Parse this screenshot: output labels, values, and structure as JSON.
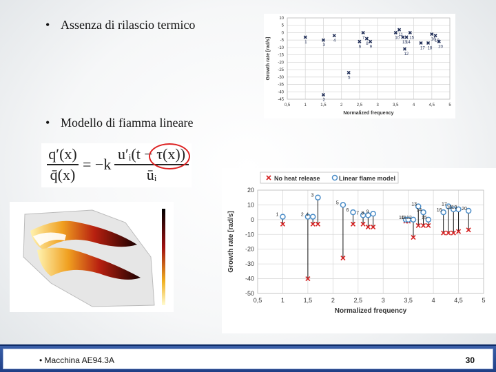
{
  "bullets": [
    {
      "symbol": "•",
      "text": "Assenza di rilascio termico"
    },
    {
      "symbol": "•",
      "text": "Modello di fiamma lineare"
    }
  ],
  "formula": {
    "lhs_num": "q′(x)",
    "lhs_den": "q̄(x)",
    "equals": "= −k",
    "rhs_num": "u′ᵢ(t − τ(x))",
    "rhs_den": "ūᵢ"
  },
  "footer": {
    "bullet": "•",
    "text": "Macchina AE94.3A",
    "page": "30"
  },
  "colors": {
    "no_heat": "#d62020",
    "linear_flame": "#4a8cc7",
    "footer_blue": "#2a4c96"
  },
  "chart_data": [
    {
      "type": "scatter",
      "xlabel": "Normalized  frequency",
      "ylabel": "Growth rate [rad/s]",
      "xlim": [
        0.5,
        5
      ],
      "ylim": [
        -45,
        10
      ],
      "xticks": [
        "0,5",
        "1",
        "1,5",
        "2",
        "2,5",
        "3",
        "3,5",
        "4",
        "4,5",
        "5"
      ],
      "yticks": [
        "10",
        "5",
        "0",
        "-5",
        "-10",
        "-15",
        "-20",
        "-25",
        "-30",
        "-35",
        "-40",
        "-45"
      ],
      "grid": true,
      "points": [
        {
          "label": "1",
          "x": 1.0,
          "y": -3
        },
        {
          "label": "2",
          "x": 1.5,
          "y": -42
        },
        {
          "label": "3",
          "x": 1.5,
          "y": -5
        },
        {
          "label": "4",
          "x": 1.8,
          "y": -2
        },
        {
          "label": "5",
          "x": 2.2,
          "y": -27
        },
        {
          "label": "6",
          "x": 2.5,
          "y": -6
        },
        {
          "label": "7",
          "x": 2.6,
          "y": 0
        },
        {
          "label": "8",
          "x": 2.7,
          "y": -4
        },
        {
          "label": "9",
          "x": 2.8,
          "y": -6
        },
        {
          "label": "10",
          "x": 3.5,
          "y": 0
        },
        {
          "label": "11",
          "x": 3.6,
          "y": 2
        },
        {
          "label": "12",
          "x": 3.75,
          "y": -11
        },
        {
          "label": "13",
          "x": 3.7,
          "y": -3
        },
        {
          "label": "14",
          "x": 3.8,
          "y": -3
        },
        {
          "label": "15",
          "x": 3.9,
          "y": 0
        },
        {
          "label": "16",
          "x": 4.5,
          "y": -1
        },
        {
          "label": "17",
          "x": 4.2,
          "y": -7
        },
        {
          "label": "18",
          "x": 4.4,
          "y": -7
        },
        {
          "label": "19",
          "x": 4.6,
          "y": -2
        },
        {
          "label": "20",
          "x": 4.7,
          "y": -6
        }
      ]
    },
    {
      "type": "scatter",
      "xlabel": "Normalized  frequency",
      "ylabel": "Growth rate [rad/s]",
      "xlim": [
        0.5,
        5
      ],
      "ylim": [
        -50,
        20
      ],
      "xticks": [
        "0,5",
        "1",
        "1,5",
        "2",
        "2,5",
        "3",
        "3,5",
        "4",
        "4,5",
        "5"
      ],
      "yticks": [
        "20",
        "10",
        "0",
        "-10",
        "-20",
        "-30",
        "-40",
        "-50"
      ],
      "grid": true,
      "legend_position": "top-left",
      "series": [
        {
          "name": "No heat release",
          "marker": "x",
          "color": "#d62020"
        },
        {
          "name": "Linear flame model",
          "marker": "o",
          "color": "#4a8cc7"
        }
      ],
      "points": [
        {
          "label": "1",
          "x": 1.0,
          "no_heat": -3,
          "linear": 2
        },
        {
          "label": "2",
          "x": 1.5,
          "no_heat": -40,
          "linear": 2
        },
        {
          "label": "3",
          "x": 1.7,
          "no_heat": -3,
          "linear": 15
        },
        {
          "label": "4",
          "x": 1.6,
          "no_heat": -3,
          "linear": 2
        },
        {
          "label": "5",
          "x": 2.2,
          "no_heat": -26,
          "linear": 10
        },
        {
          "label": "6",
          "x": 2.4,
          "no_heat": -3,
          "linear": 5
        },
        {
          "label": "7",
          "x": 2.6,
          "no_heat": -3,
          "linear": 3
        },
        {
          "label": "8",
          "x": 2.7,
          "no_heat": -5,
          "linear": 3
        },
        {
          "label": "9",
          "x": 2.8,
          "no_heat": -5,
          "linear": 4
        },
        {
          "label": "10",
          "x": 3.45,
          "no_heat": -1,
          "linear": 0
        },
        {
          "label": "11",
          "x": 3.5,
          "no_heat": -1,
          "linear": 0
        },
        {
          "label": "12",
          "x": 3.6,
          "no_heat": -12,
          "linear": 0
        },
        {
          "label": "13",
          "x": 3.7,
          "no_heat": -4,
          "linear": 9
        },
        {
          "label": "14",
          "x": 3.8,
          "no_heat": -4,
          "linear": 5
        },
        {
          "label": "15",
          "x": 3.9,
          "no_heat": -4,
          "linear": 0
        },
        {
          "label": "16",
          "x": 4.2,
          "no_heat": -9,
          "linear": 5
        },
        {
          "label": "17",
          "x": 4.3,
          "no_heat": -9,
          "linear": 9
        },
        {
          "label": "18",
          "x": 4.4,
          "no_heat": -9,
          "linear": 7
        },
        {
          "label": "19",
          "x": 4.5,
          "no_heat": -8,
          "linear": 7
        },
        {
          "label": "20",
          "x": 4.7,
          "no_heat": -7,
          "linear": 6
        }
      ]
    }
  ]
}
